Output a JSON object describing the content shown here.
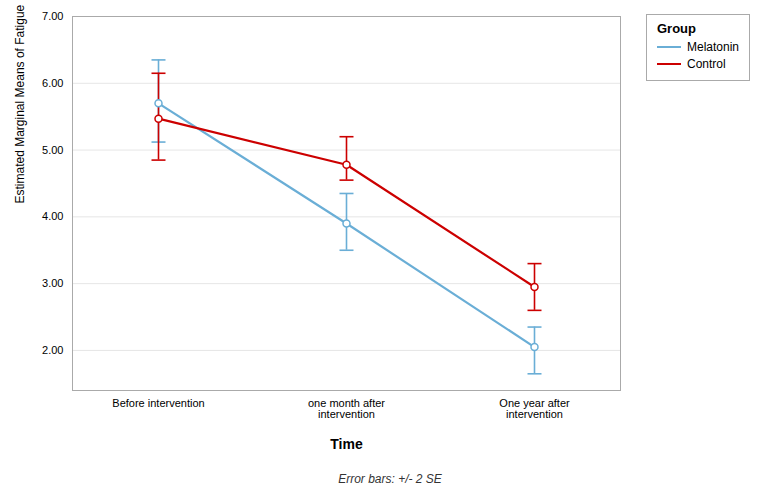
{
  "chart_data": {
    "type": "line",
    "xlabel": "Time",
    "ylabel": "Estimated Marginal Means of Fatigue",
    "categories": [
      "Before intervention",
      "one month after\nintervention",
      "One year after\nintervention"
    ],
    "series": [
      {
        "name": "Melatonin",
        "color": "#6aaed6",
        "marker": "circle",
        "values": [
          5.7,
          3.9,
          2.05
        ],
        "lower": [
          5.12,
          3.5,
          1.65
        ],
        "upper": [
          6.35,
          4.35,
          2.35
        ]
      },
      {
        "name": "Control",
        "color": "#cc0000",
        "marker": "circle",
        "values": [
          5.47,
          4.78,
          2.95
        ],
        "lower": [
          4.85,
          4.55,
          2.6
        ],
        "upper": [
          6.15,
          5.2,
          3.3
        ]
      }
    ],
    "ylim": [
      1.4,
      7.0
    ],
    "yticks": [
      {
        "value": 2,
        "label": "2.00"
      },
      {
        "value": 3,
        "label": "3.00"
      },
      {
        "value": 4,
        "label": "4.00"
      },
      {
        "value": 5,
        "label": "5.00"
      },
      {
        "value": 6,
        "label": "6.00"
      },
      {
        "value": 7,
        "label": "7.00"
      }
    ],
    "grid": true,
    "legend": "right",
    "legend_title": "Group",
    "note": "Error bars: +/- 2 SE"
  }
}
